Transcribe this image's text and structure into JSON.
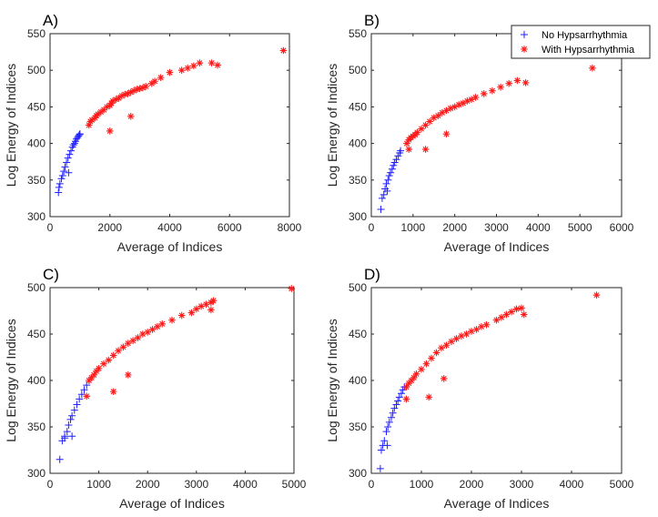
{
  "colors": {
    "no": "#1f1fff",
    "with": "#ff1a1a",
    "axis": "#262626"
  },
  "legend": {
    "items": [
      {
        "label": "No Hypsarrhythmia",
        "marker": "+",
        "color": "#1f1fff"
      },
      {
        "label": "With Hypsarrhythmia",
        "marker": "*",
        "color": "#ff1a1a"
      }
    ]
  },
  "chart_data": [
    {
      "type": "scatter",
      "panel": "A)",
      "xlabel": "Average of Indices",
      "ylabel": "Log Energy of Indices",
      "xlim": [
        0,
        8000
      ],
      "ylim": [
        300,
        550
      ],
      "xticks": [
        0,
        2000,
        4000,
        6000,
        8000
      ],
      "yticks": [
        300,
        350,
        400,
        450,
        500,
        550
      ],
      "series": [
        {
          "name": "No Hypsarrhythmia",
          "marker": "+",
          "x": [
            280,
            300,
            330,
            380,
            420,
            460,
            500,
            550,
            600,
            650,
            700,
            750,
            780,
            820,
            850,
            880,
            920,
            950,
            980,
            1000,
            620
          ],
          "y": [
            333,
            340,
            345,
            352,
            356,
            362,
            368,
            374,
            380,
            385,
            390,
            395,
            398,
            400,
            403,
            406,
            408,
            410,
            412,
            413,
            360
          ]
        },
        {
          "name": "With Hypsarrhythmia",
          "marker": "*",
          "x": [
            1300,
            1350,
            1400,
            1500,
            1550,
            1600,
            1700,
            1800,
            1900,
            2000,
            2050,
            2100,
            2200,
            2300,
            2400,
            2500,
            2600,
            2700,
            2800,
            2900,
            3000,
            3100,
            3200,
            3400,
            3500,
            3700,
            4000,
            4400,
            4600,
            4800,
            5000,
            5400,
            5600,
            7800,
            2000,
            2700
          ],
          "y": [
            425,
            430,
            432,
            435,
            438,
            440,
            443,
            446,
            450,
            452,
            455,
            458,
            460,
            462,
            465,
            467,
            468,
            470,
            472,
            474,
            475,
            476,
            478,
            482,
            485,
            490,
            497,
            500,
            503,
            506,
            510,
            510,
            507,
            527,
            417,
            437
          ]
        }
      ]
    },
    {
      "type": "scatter",
      "panel": "B)",
      "xlabel": "Average of Indices",
      "ylabel": "Log Energy of Indices",
      "xlim": [
        0,
        6000
      ],
      "ylim": [
        300,
        550
      ],
      "xticks": [
        0,
        1000,
        2000,
        3000,
        4000,
        5000,
        6000
      ],
      "yticks": [
        300,
        350,
        400,
        450,
        500,
        550
      ],
      "series": [
        {
          "name": "No Hypsarrhythmia",
          "marker": "+",
          "x": [
            230,
            260,
            300,
            330,
            360,
            400,
            430,
            460,
            500,
            530,
            560,
            600,
            640,
            680,
            700,
            380
          ],
          "y": [
            310,
            325,
            330,
            338,
            345,
            350,
            356,
            360,
            365,
            370,
            374,
            378,
            383,
            387,
            390,
            335
          ]
        },
        {
          "name": "With Hypsarrhythmia",
          "marker": "*",
          "x": [
            850,
            900,
            950,
            1000,
            1050,
            1100,
            1200,
            1300,
            1400,
            1500,
            1600,
            1700,
            1800,
            1900,
            2000,
            2100,
            2200,
            2300,
            2400,
            2500,
            2700,
            2900,
            3100,
            3300,
            3500,
            3700,
            5300,
            1300,
            1800,
            900
          ],
          "y": [
            400,
            405,
            408,
            410,
            412,
            415,
            420,
            425,
            430,
            435,
            438,
            442,
            445,
            448,
            450,
            453,
            455,
            458,
            460,
            463,
            468,
            472,
            477,
            482,
            486,
            483,
            503,
            392,
            413,
            392
          ]
        }
      ]
    },
    {
      "type": "scatter",
      "panel": "C)",
      "xlabel": "Average of Indices",
      "ylabel": "Log Energy of Indices",
      "xlim": [
        0,
        5000
      ],
      "ylim": [
        300,
        500
      ],
      "xticks": [
        0,
        1000,
        2000,
        3000,
        4000,
        5000
      ],
      "yticks": [
        300,
        350,
        400,
        450,
        500
      ],
      "series": [
        {
          "name": "No Hypsarrhythmia",
          "marker": "+",
          "x": [
            200,
            250,
            300,
            350,
            380,
            420,
            450,
            500,
            550,
            600,
            650,
            700,
            750,
            800,
            450,
            300
          ],
          "y": [
            315,
            335,
            340,
            345,
            352,
            358,
            362,
            368,
            374,
            380,
            385,
            390,
            395,
            400,
            340,
            338
          ]
        },
        {
          "name": "With Hypsarrhythmia",
          "marker": "*",
          "x": [
            800,
            850,
            900,
            950,
            1000,
            1100,
            1200,
            1300,
            1400,
            1500,
            1600,
            1700,
            1800,
            1900,
            2000,
            2100,
            2200,
            2300,
            2500,
            2700,
            2900,
            3000,
            3100,
            3200,
            3300,
            3350,
            4950,
            750,
            1300,
            1600,
            3300
          ],
          "y": [
            400,
            403,
            406,
            410,
            413,
            418,
            422,
            427,
            432,
            436,
            440,
            443,
            446,
            450,
            452,
            455,
            458,
            461,
            465,
            470,
            473,
            477,
            480,
            482,
            484,
            486,
            499,
            383,
            388,
            406,
            476
          ]
        }
      ]
    },
    {
      "type": "scatter",
      "panel": "D)",
      "xlabel": "Average of Indices",
      "ylabel": "Log Energy of Indices",
      "xlim": [
        0,
        5000
      ],
      "ylim": [
        300,
        500
      ],
      "xticks": [
        0,
        1000,
        2000,
        3000,
        4000,
        5000
      ],
      "yticks": [
        300,
        350,
        400,
        450,
        500
      ],
      "series": [
        {
          "name": "No Hypsarrhythmia",
          "marker": "+",
          "x": [
            180,
            200,
            230,
            260,
            300,
            330,
            360,
            400,
            430,
            460,
            500,
            530,
            560,
            600,
            630,
            660,
            320
          ],
          "y": [
            305,
            325,
            330,
            335,
            345,
            350,
            355,
            360,
            365,
            370,
            374,
            378,
            382,
            386,
            390,
            393,
            330
          ]
        },
        {
          "name": "With Hypsarrhythmia",
          "marker": "*",
          "x": [
            700,
            750,
            800,
            850,
            900,
            1000,
            1100,
            1200,
            1300,
            1400,
            1500,
            1600,
            1700,
            1800,
            1900,
            2000,
            2100,
            2200,
            2300,
            2500,
            2600,
            2700,
            2800,
            2900,
            3000,
            4500,
            700,
            1150,
            1450,
            3050
          ],
          "y": [
            393,
            397,
            400,
            403,
            407,
            412,
            418,
            424,
            430,
            435,
            438,
            442,
            445,
            448,
            450,
            453,
            455,
            458,
            460,
            465,
            468,
            471,
            474,
            477,
            478,
            492,
            380,
            382,
            402,
            471
          ]
        }
      ]
    }
  ]
}
